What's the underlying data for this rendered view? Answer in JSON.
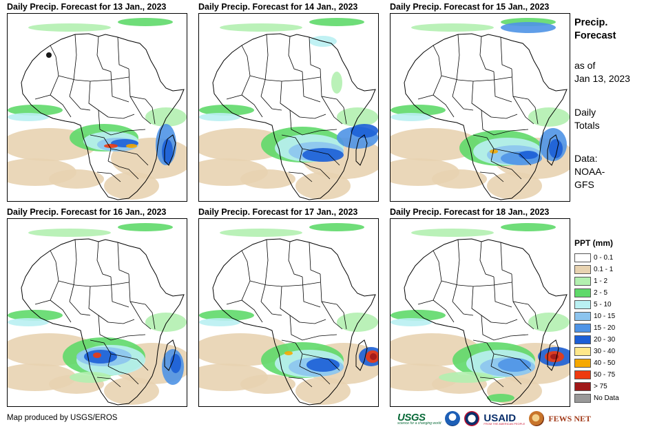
{
  "panels": [
    {
      "title": "Daily Precip. Forecast for 13 Jan., 2023"
    },
    {
      "title": "Daily Precip. Forecast for 14 Jan., 2023"
    },
    {
      "title": "Daily Precip. Forecast for 15 Jan., 2023"
    },
    {
      "title": "Daily Precip. Forecast for 16 Jan., 2023"
    },
    {
      "title": "Daily Precip. Forecast for 17 Jan., 2023"
    },
    {
      "title": "Daily Precip. Forecast for 18 Jan., 2023"
    }
  ],
  "side": {
    "title_line1": "Precip.",
    "title_line2": "Forecast",
    "asof_line1": "as of",
    "asof_line2": "Jan 13, 2023",
    "totals_line1": "Daily",
    "totals_line2": "Totals",
    "data_line1": "Data:",
    "data_line2": "NOAA-",
    "data_line3": "GFS"
  },
  "legend": {
    "title": "PPT (mm)",
    "items": [
      {
        "label": "0 - 0.1",
        "color": "#ffffff"
      },
      {
        "label": "0.1 - 1",
        "color": "#e8d3b1"
      },
      {
        "label": "1 - 2",
        "color": "#b3f0b0"
      },
      {
        "label": "2 - 5",
        "color": "#5fd96a"
      },
      {
        "label": "5 - 10",
        "color": "#b9f0f2"
      },
      {
        "label": "10 - 15",
        "color": "#8cc4ee"
      },
      {
        "label": "15 - 20",
        "color": "#4f94e6"
      },
      {
        "label": "20 - 30",
        "color": "#1c5fd6"
      },
      {
        "label": "30 - 40",
        "color": "#ffe88a"
      },
      {
        "label": "40 - 50",
        "color": "#f5a800"
      },
      {
        "label": "50 - 75",
        "color": "#ee3a10"
      },
      {
        "label": "> 75",
        "color": "#a01818"
      },
      {
        "label": "No Data",
        "color": "#999999"
      }
    ]
  },
  "credit": "Map produced by USGS/EROS",
  "logos": {
    "usgs": "USGS",
    "usgs_tagline": "science for a changing world",
    "usaid": "USAID",
    "usaid_tagline": "FROM THE AMERICAN PEOPLE",
    "fews": "FEWS NET"
  }
}
